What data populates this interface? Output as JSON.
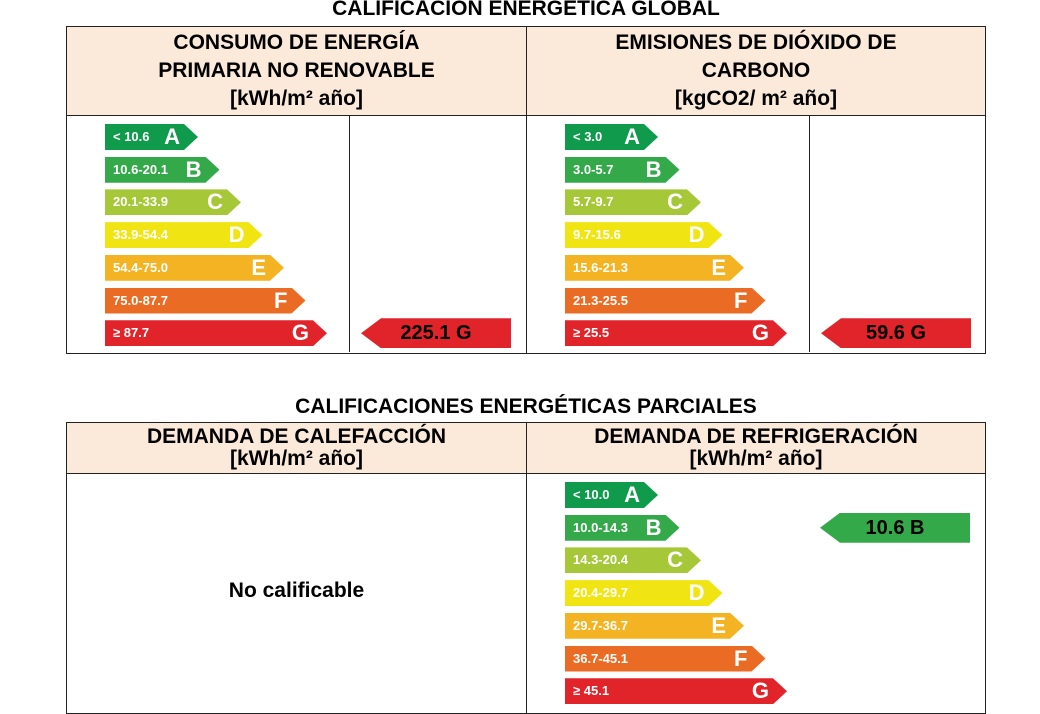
{
  "global": {
    "title": "CALIFICACIÓN ENERGÉTICA GLOBAL",
    "left": {
      "header": [
        "CONSUMO DE ENERGÍA",
        "PRIMARIA NO RENOVABLE",
        "[kWh/m² año]"
      ],
      "ranges": [
        "< 10.6",
        "10.6-20.1",
        "20.1-33.9",
        "33.9-54.4",
        "54.4-75.0",
        "75.0-87.7",
        "≥ 87.7"
      ],
      "indicator": {
        "text": "225.1 G",
        "class_index": 6
      }
    },
    "right": {
      "header": [
        "EMISIONES DE DIÓXIDO DE",
        "CARBONO",
        "[kgCO2/ m² año]"
      ],
      "ranges": [
        "< 3.0",
        "3.0-5.7",
        "5.7-9.7",
        "9.7-15.6",
        "15.6-21.3",
        "21.3-25.5",
        "≥ 25.5"
      ],
      "indicator": {
        "text": "59.6 G",
        "class_index": 6
      }
    }
  },
  "partial": {
    "title": "CALIFICACIONES ENERGÉTICAS PARCIALES",
    "left": {
      "header": [
        "DEMANDA DE CALEFACCIÓN",
        "[kWh/m² año]"
      ],
      "no_rating": "No calificable"
    },
    "right": {
      "header": [
        "DEMANDA DE REFRIGERACIÓN",
        "[kWh/m² año]"
      ],
      "ranges": [
        "< 10.0",
        "10.0-14.3",
        "14.3-20.4",
        "20.4-29.7",
        "29.7-36.7",
        "36.7-45.1",
        "≥ 45.1"
      ],
      "indicator": {
        "text": "10.6 B",
        "class_index": 1
      }
    }
  },
  "classes": [
    "A",
    "B",
    "C",
    "D",
    "E",
    "F",
    "G"
  ],
  "colors": [
    "#0f9b4b",
    "#34a94a",
    "#a6c838",
    "#f0e512",
    "#f3b322",
    "#ea6b24",
    "#e1232a"
  ]
}
